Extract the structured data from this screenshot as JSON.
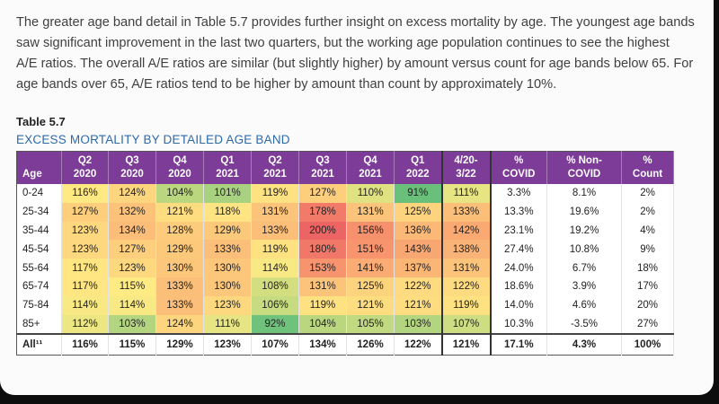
{
  "paragraph": {
    "lines": [
      "The greater age band detail in Table 5.7 provides further insight on excess mortality by age. The youngest age bands",
      "saw significant improvement in the last two quarters, but the working age population continues to see the highest",
      "A/E ratios. The overall A/E ratios are similar (but slightly higher) by amount versus count for age bands below 65. For",
      "age bands over 65, A/E ratios tend to be higher by amount than count by approximately 10%."
    ]
  },
  "table": {
    "label": "Table 5.7",
    "title": "EXCESS MORTALITY BY DETAILED AGE BAND",
    "headers": [
      [
        "",
        "Age"
      ],
      [
        "Q2",
        "2020"
      ],
      [
        "Q3",
        "2020"
      ],
      [
        "Q4",
        "2020"
      ],
      [
        "Q1",
        "2021"
      ],
      [
        "Q2",
        "2021"
      ],
      [
        "Q3",
        "2021"
      ],
      [
        "Q4",
        "2021"
      ],
      [
        "Q1",
        "2022"
      ],
      [
        "4/20-",
        "3/22"
      ],
      [
        "%",
        "COVID"
      ],
      [
        "% Non-",
        "COVID"
      ],
      [
        "%",
        "Count"
      ]
    ],
    "rows": [
      {
        "age": "0-24",
        "cells": [
          "116%",
          "124%",
          "104%",
          "101%",
          "119%",
          "127%",
          "110%",
          "91%",
          "111%"
        ],
        "pct": [
          "3.3%",
          "8.1%",
          "2%"
        ]
      },
      {
        "age": "25-34",
        "cells": [
          "127%",
          "132%",
          "121%",
          "118%",
          "131%",
          "178%",
          "131%",
          "125%",
          "133%"
        ],
        "pct": [
          "13.3%",
          "19.6%",
          "2%"
        ]
      },
      {
        "age": "35-44",
        "cells": [
          "123%",
          "134%",
          "128%",
          "129%",
          "133%",
          "200%",
          "156%",
          "136%",
          "142%"
        ],
        "pct": [
          "23.1%",
          "19.2%",
          "4%"
        ]
      },
      {
        "age": "45-54",
        "cells": [
          "123%",
          "127%",
          "129%",
          "133%",
          "119%",
          "180%",
          "151%",
          "143%",
          "138%"
        ],
        "pct": [
          "27.4%",
          "10.8%",
          "9%"
        ]
      },
      {
        "age": "55-64",
        "cells": [
          "117%",
          "123%",
          "130%",
          "130%",
          "114%",
          "153%",
          "141%",
          "137%",
          "131%"
        ],
        "pct": [
          "24.0%",
          "6.7%",
          "18%"
        ]
      },
      {
        "age": "65-74",
        "cells": [
          "117%",
          "115%",
          "133%",
          "130%",
          "108%",
          "131%",
          "125%",
          "122%",
          "122%"
        ],
        "pct": [
          "18.6%",
          "3.9%",
          "17%"
        ]
      },
      {
        "age": "75-84",
        "cells": [
          "114%",
          "114%",
          "133%",
          "123%",
          "106%",
          "119%",
          "121%",
          "121%",
          "119%"
        ],
        "pct": [
          "14.0%",
          "4.6%",
          "20%"
        ]
      },
      {
        "age": "85+",
        "cells": [
          "112%",
          "103%",
          "124%",
          "111%",
          "92%",
          "104%",
          "105%",
          "103%",
          "107%"
        ],
        "pct": [
          "10.3%",
          "-3.5%",
          "27%"
        ]
      }
    ],
    "total": {
      "age": "All¹¹",
      "cells": [
        "116%",
        "115%",
        "129%",
        "123%",
        "107%",
        "134%",
        "126%",
        "122%",
        "121%"
      ],
      "pct": [
        "17.1%",
        "4.3%",
        "100%"
      ]
    }
  }
}
